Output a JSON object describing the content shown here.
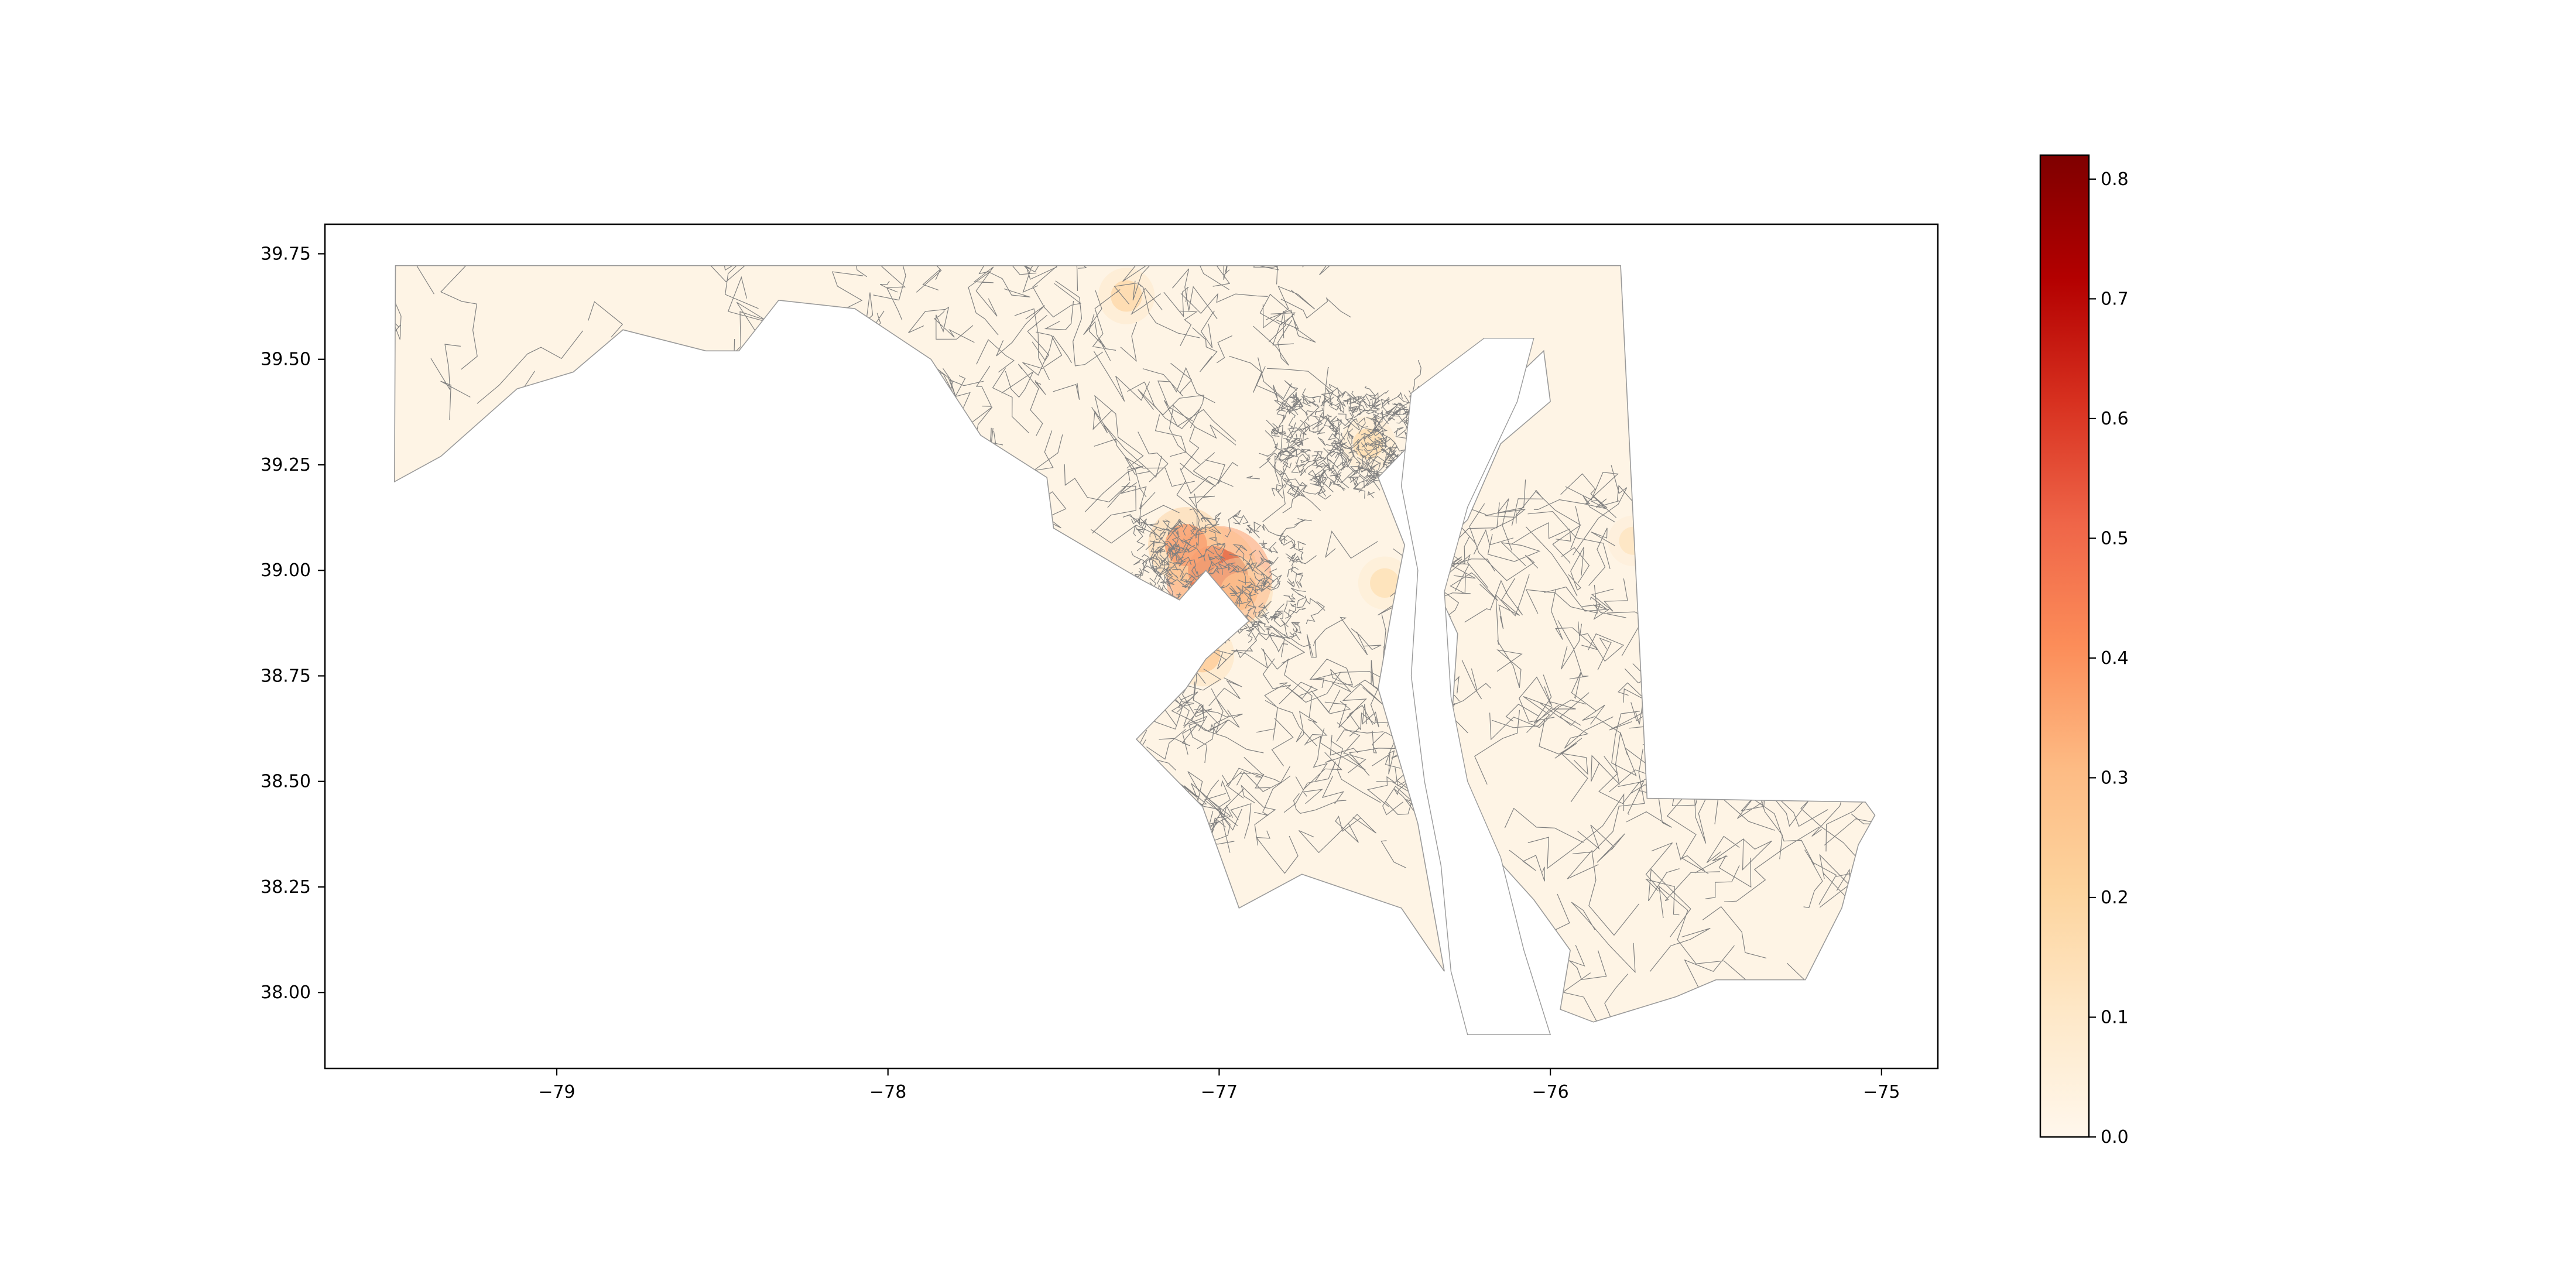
{
  "chart_data": {
    "type": "choropleth",
    "title": "",
    "xlabel": "",
    "ylabel": "",
    "xlim": [
      -79.7,
      -74.83
    ],
    "ylim": [
      37.82,
      39.82
    ],
    "x_ticks": [
      -79,
      -78,
      -77,
      -76,
      -75
    ],
    "x_tick_labels": [
      "−79",
      "−78",
      "−77",
      "−76",
      "−75"
    ],
    "y_ticks": [
      38.0,
      38.25,
      38.5,
      38.75,
      39.0,
      39.25,
      39.5,
      39.75
    ],
    "y_tick_labels": [
      "38.00",
      "38.25",
      "38.50",
      "38.75",
      "39.00",
      "39.25",
      "39.50",
      "39.75"
    ],
    "grid": false,
    "colormap": "OrRd",
    "colorbar": {
      "vmin": 0.0,
      "vmax": 0.82,
      "ticks": [
        0.0,
        0.1,
        0.2,
        0.3,
        0.4,
        0.5,
        0.6,
        0.7,
        0.8
      ],
      "tick_labels": [
        "0.0",
        "0.1",
        "0.2",
        "0.3",
        "0.4",
        "0.5",
        "0.6",
        "0.7",
        "0.8"
      ],
      "stops": [
        "#fff7ec",
        "#fee8c8",
        "#fdd49e",
        "#fdbb84",
        "#fc8d59",
        "#ef6548",
        "#d7301f",
        "#b30000",
        "#7f0000"
      ]
    },
    "hotspots": [
      {
        "lon": -77.0,
        "lat": 38.98,
        "value": 0.8
      },
      {
        "lon": -77.02,
        "lat": 39.0,
        "value": 0.6
      },
      {
        "lon": -77.1,
        "lat": 39.06,
        "value": 0.45
      },
      {
        "lon": -76.94,
        "lat": 38.95,
        "value": 0.35
      },
      {
        "lon": -77.05,
        "lat": 38.8,
        "value": 0.3
      },
      {
        "lon": -76.55,
        "lat": 39.3,
        "value": 0.2
      },
      {
        "lon": -77.28,
        "lat": 39.65,
        "value": 0.22
      },
      {
        "lon": -76.5,
        "lat": 38.97,
        "value": 0.18
      },
      {
        "lon": -75.75,
        "lat": 39.07,
        "value": 0.15
      }
    ],
    "fill_colors": {
      "base": "#fef4e5",
      "boundary": "#808080"
    }
  }
}
